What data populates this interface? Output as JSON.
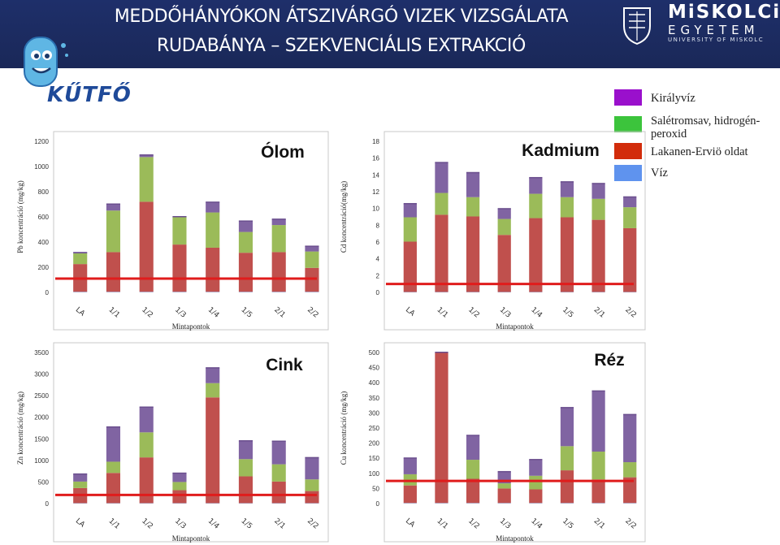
{
  "header": {
    "title_line1": "MEDDŐHÁNYÓKON ÁTSZIVÁRGÓ VIZEK VIZSGÁLATA",
    "title_line2": "RUDABÁNYA – SZEKVENCIÁLIS EXTRAKCIÓ",
    "logo_left": "KŰTFŐ",
    "logo_right_1": "MiSKOLCi",
    "logo_right_2": "EGYETEM",
    "logo_right_3": "UNIVERSITY OF MISKOLC"
  },
  "legend": [
    {
      "label": "Királyvíz",
      "color": "#9a10cc"
    },
    {
      "label": "Salétromsav, hidrogén-peroxid",
      "color": "#3cc43c"
    },
    {
      "label": "Lakanen-Erviö oldat",
      "color": "#d22c0b"
    },
    {
      "label": "Víz",
      "color": "#5f93ee"
    }
  ],
  "colors": {
    "water": "#9fb4de",
    "lakanen": "#c0504d",
    "nitric": "#9bbb59",
    "aqua_regia": "#8064a2",
    "limit_line": "#e01c1c",
    "header_bg": "#1e2f6a"
  },
  "chart_data": [
    {
      "type": "bar",
      "stacked": true,
      "title": "Ólom",
      "xlabel": "Mintapontok",
      "ylabel": "Pb koncentráció (mg/kg)",
      "categories": [
        "LA",
        "1/1",
        "1/2",
        "1/3",
        "1/4",
        "1/5",
        "2/1",
        "2/2"
      ],
      "ylim": [
        0,
        1200
      ],
      "yticks": [
        0,
        200,
        400,
        600,
        800,
        1000,
        1200
      ],
      "limit_value": 110,
      "series": [
        {
          "key": "water",
          "values": [
            5,
            5,
            5,
            5,
            5,
            5,
            5,
            5
          ]
        },
        {
          "key": "lakanen",
          "values": [
            220,
            315,
            715,
            375,
            350,
            310,
            315,
            190
          ]
        },
        {
          "key": "nitric",
          "values": [
            85,
            330,
            355,
            220,
            280,
            165,
            215,
            130
          ]
        },
        {
          "key": "aqua_regia",
          "values": [
            5,
            50,
            15,
            0,
            80,
            85,
            45,
            40
          ]
        }
      ]
    },
    {
      "type": "bar",
      "stacked": true,
      "title": "Kadmium",
      "xlabel": "Mintapontok",
      "ylabel": "Cd koncentráció(mg/kg)",
      "categories": [
        "LA",
        "1/1",
        "1/2",
        "1/3",
        "1/4",
        "1/5",
        "2/1",
        "2/2"
      ],
      "ylim": [
        0,
        18
      ],
      "yticks": [
        0,
        2,
        4,
        6,
        8,
        10,
        12,
        14,
        16,
        18
      ],
      "limit_value": 1,
      "series": [
        {
          "key": "water",
          "values": [
            0.05,
            0.05,
            0.05,
            0.05,
            0.05,
            0.05,
            0.05,
            0.05
          ]
        },
        {
          "key": "lakanen",
          "values": [
            6.0,
            9.2,
            9.0,
            6.8,
            8.8,
            8.9,
            8.6,
            7.6
          ]
        },
        {
          "key": "nitric",
          "values": [
            2.9,
            2.6,
            2.3,
            1.9,
            2.9,
            2.4,
            2.5,
            2.5
          ]
        },
        {
          "key": "aqua_regia",
          "values": [
            1.6,
            3.6,
            2.9,
            1.2,
            1.9,
            1.8,
            1.8,
            1.2
          ]
        }
      ]
    },
    {
      "type": "bar",
      "stacked": true,
      "title": "Cink",
      "xlabel": "Mintapontok",
      "ylabel": "Zn koncentráció (mg/kg)",
      "categories": [
        "LA",
        "1/1",
        "1/2",
        "1/3",
        "1/4",
        "1/5",
        "2/1",
        "2/2"
      ],
      "ylim": [
        0,
        3500
      ],
      "yticks": [
        0,
        500,
        1000,
        1500,
        2000,
        2500,
        3000,
        3500
      ],
      "limit_value": 200,
      "series": [
        {
          "key": "water",
          "values": [
            10,
            10,
            10,
            10,
            10,
            10,
            10,
            10
          ]
        },
        {
          "key": "lakanen",
          "values": [
            350,
            700,
            1060,
            300,
            2450,
            620,
            500,
            280
          ]
        },
        {
          "key": "nitric",
          "values": [
            150,
            260,
            580,
            190,
            330,
            400,
            400,
            270
          ]
        },
        {
          "key": "aqua_regia",
          "values": [
            170,
            800,
            580,
            200,
            350,
            420,
            530,
            500
          ]
        }
      ]
    },
    {
      "type": "bar",
      "stacked": true,
      "title": "Réz",
      "xlabel": "Mintapontok",
      "ylabel": "Cu koncentráció (mg/kg)",
      "categories": [
        "LA",
        "1/1",
        "1/2",
        "1/3",
        "1/4",
        "1/5",
        "2/1",
        "2/2"
      ],
      "ylim": [
        0,
        500
      ],
      "yticks": [
        0,
        50,
        100,
        150,
        200,
        250,
        300,
        350,
        400,
        450,
        500
      ],
      "limit_value": 75,
      "series": [
        {
          "key": "water",
          "values": [
            2,
            2,
            2,
            2,
            2,
            2,
            2,
            2
          ]
        },
        {
          "key": "lakanen",
          "values": [
            58,
            498,
            80,
            48,
            45,
            108,
            78,
            85
          ]
        },
        {
          "key": "nitric",
          "values": [
            37,
            0,
            63,
            17,
            45,
            80,
            92,
            50
          ]
        },
        {
          "key": "aqua_regia",
          "values": [
            53,
            0,
            80,
            38,
            53,
            127,
            200,
            157
          ]
        }
      ]
    }
  ]
}
